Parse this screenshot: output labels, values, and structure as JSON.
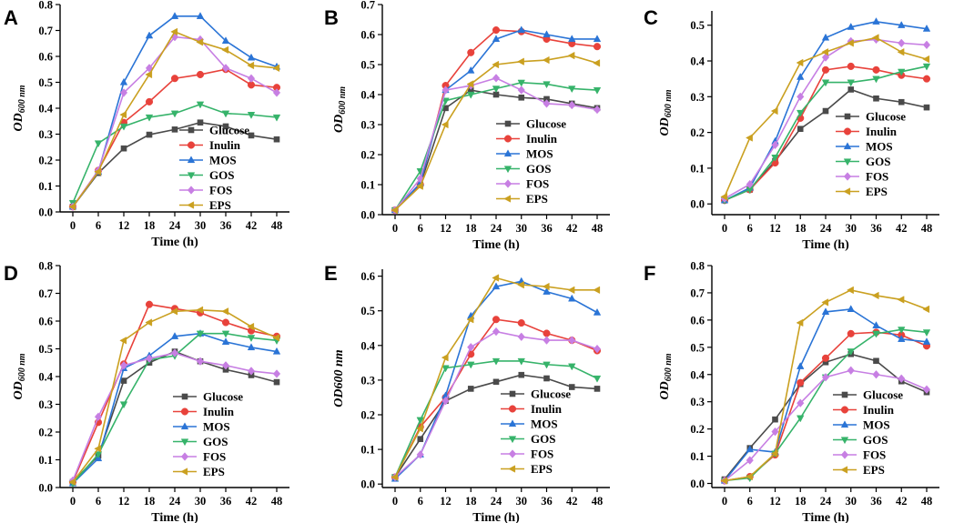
{
  "colors": {
    "Glucose": "#4a4a4a",
    "Inulin": "#e8423b",
    "MOS": "#2a74d6",
    "GOS": "#36b36a",
    "FOS": "#c77fe3",
    "EPS": "#caa020"
  },
  "markers": {
    "Glucose": "square",
    "Inulin": "circle",
    "MOS": "triangle-up",
    "GOS": "triangle-down",
    "FOS": "diamond",
    "EPS": "triangle-left"
  },
  "chart_data": [
    {
      "panel": "A",
      "type": "line",
      "xlabel": "Time (h)",
      "ylabel": "OD",
      "ylabel_sub": "600 nm",
      "categories": [
        "0",
        "6",
        "12",
        "18",
        "24",
        "30",
        "36",
        "42",
        "48"
      ],
      "yticks": [
        "0.0",
        "0.1",
        "0.2",
        "0.3",
        "0.4",
        "0.5",
        "0.6",
        "0.7",
        "0.8"
      ],
      "ylim": [
        0,
        0.8
      ],
      "series": [
        {
          "name": "Glucose",
          "values": [
            0.02,
            0.15,
            0.245,
            0.298,
            0.318,
            0.345,
            0.33,
            0.295,
            0.28
          ]
        },
        {
          "name": "Inulin",
          "values": [
            0.02,
            0.16,
            0.345,
            0.425,
            0.515,
            0.53,
            0.55,
            0.49,
            0.48
          ]
        },
        {
          "name": "MOS",
          "values": [
            0.02,
            0.155,
            0.5,
            0.68,
            0.755,
            0.755,
            0.66,
            0.595,
            0.56
          ]
        },
        {
          "name": "GOS",
          "values": [
            0.035,
            0.265,
            0.33,
            0.365,
            0.38,
            0.415,
            0.38,
            0.375,
            0.365
          ]
        },
        {
          "name": "FOS",
          "values": [
            0.02,
            0.16,
            0.46,
            0.555,
            0.675,
            0.665,
            0.555,
            0.515,
            0.46
          ]
        },
        {
          "name": "EPS",
          "values": [
            0.02,
            0.155,
            0.375,
            0.53,
            0.695,
            0.655,
            0.625,
            0.565,
            0.555
          ]
        }
      ]
    },
    {
      "panel": "B",
      "type": "line",
      "xlabel": "Time (h)",
      "ylabel": "OD",
      "ylabel_sub": "600 nm",
      "categories": [
        "0",
        "6",
        "12",
        "18",
        "24",
        "30",
        "36",
        "42",
        "48"
      ],
      "yticks": [
        "0.0",
        "0.1",
        "0.2",
        "0.3",
        "0.4",
        "0.5",
        "0.6",
        "0.7"
      ],
      "ylim": [
        0,
        0.7
      ],
      "series": [
        {
          "name": "Glucose",
          "values": [
            0.015,
            0.1,
            0.355,
            0.415,
            0.4,
            0.39,
            0.385,
            0.37,
            0.355
          ]
        },
        {
          "name": "Inulin",
          "values": [
            0.015,
            0.1,
            0.43,
            0.54,
            0.615,
            0.61,
            0.585,
            0.57,
            0.56
          ]
        },
        {
          "name": "MOS",
          "values": [
            0.015,
            0.105,
            0.415,
            0.48,
            0.585,
            0.615,
            0.6,
            0.585,
            0.585
          ]
        },
        {
          "name": "GOS",
          "values": [
            0.015,
            0.145,
            0.38,
            0.4,
            0.42,
            0.44,
            0.435,
            0.42,
            0.415
          ]
        },
        {
          "name": "FOS",
          "values": [
            0.015,
            0.12,
            0.415,
            0.43,
            0.455,
            0.415,
            0.37,
            0.365,
            0.35
          ]
        },
        {
          "name": "EPS",
          "values": [
            0.015,
            0.095,
            0.3,
            0.435,
            0.5,
            0.51,
            0.515,
            0.53,
            0.505
          ]
        }
      ]
    },
    {
      "panel": "C",
      "type": "line",
      "xlabel": "Time (h)",
      "ylabel": "OD",
      "ylabel_sub": "600 nm",
      "categories": [
        "0",
        "6",
        "12",
        "18",
        "24",
        "30",
        "36",
        "42",
        "48"
      ],
      "yticks": [
        "0.0",
        "0.1",
        "0.2",
        "0.3",
        "0.4",
        "0.5"
      ],
      "ylim": [
        -0.03,
        0.54
      ],
      "series": [
        {
          "name": "Glucose",
          "values": [
            0.01,
            0.04,
            0.12,
            0.21,
            0.26,
            0.32,
            0.295,
            0.285,
            0.27
          ]
        },
        {
          "name": "Inulin",
          "values": [
            0.01,
            0.04,
            0.115,
            0.24,
            0.375,
            0.385,
            0.375,
            0.36,
            0.35
          ]
        },
        {
          "name": "MOS",
          "values": [
            0.01,
            0.045,
            0.175,
            0.355,
            0.465,
            0.495,
            0.51,
            0.5,
            0.49
          ]
        },
        {
          "name": "GOS",
          "values": [
            0.01,
            0.04,
            0.13,
            0.255,
            0.34,
            0.34,
            0.35,
            0.37,
            0.385
          ]
        },
        {
          "name": "FOS",
          "values": [
            0.015,
            0.055,
            0.165,
            0.3,
            0.41,
            0.455,
            0.46,
            0.45,
            0.445
          ]
        },
        {
          "name": "EPS",
          "values": [
            0.02,
            0.185,
            0.26,
            0.395,
            0.425,
            0.45,
            0.465,
            0.425,
            0.405
          ]
        }
      ]
    },
    {
      "panel": "D",
      "type": "line",
      "xlabel": "Time (h)",
      "ylabel": "OD",
      "ylabel_sub": "600 nm",
      "categories": [
        "0",
        "6",
        "12",
        "18",
        "24",
        "30",
        "36",
        "42",
        "48"
      ],
      "yticks": [
        "0.0",
        "0.1",
        "0.2",
        "0.3",
        "0.4",
        "0.5",
        "0.6",
        "0.7",
        "0.8"
      ],
      "ylim": [
        0,
        0.8
      ],
      "series": [
        {
          "name": "Glucose",
          "values": [
            0.02,
            0.115,
            0.385,
            0.45,
            0.49,
            0.455,
            0.425,
            0.405,
            0.38
          ]
        },
        {
          "name": "Inulin",
          "values": [
            0.02,
            0.235,
            0.445,
            0.66,
            0.645,
            0.63,
            0.595,
            0.565,
            0.545
          ]
        },
        {
          "name": "MOS",
          "values": [
            0.015,
            0.105,
            0.43,
            0.475,
            0.545,
            0.555,
            0.525,
            0.505,
            0.49
          ]
        },
        {
          "name": "GOS",
          "values": [
            0.015,
            0.12,
            0.3,
            0.46,
            0.475,
            0.555,
            0.555,
            0.54,
            0.53
          ]
        },
        {
          "name": "FOS",
          "values": [
            0.025,
            0.255,
            0.44,
            0.465,
            0.485,
            0.455,
            0.44,
            0.42,
            0.41
          ]
        },
        {
          "name": "EPS",
          "values": [
            0.02,
            0.14,
            0.53,
            0.595,
            0.635,
            0.64,
            0.635,
            0.58,
            0.54
          ]
        }
      ]
    },
    {
      "panel": "E",
      "type": "line",
      "xlabel": "Time (h)",
      "ylabel": "OD600 nm",
      "ylabel_sub": "",
      "categories": [
        "0",
        "6",
        "12",
        "18",
        "24",
        "30",
        "36",
        "42",
        "48"
      ],
      "yticks": [
        "0.0",
        "0.1",
        "0.2",
        "0.3",
        "0.4",
        "0.5",
        "0.6"
      ],
      "ylim": [
        -0.01,
        0.62
      ],
      "series": [
        {
          "name": "Glucose",
          "values": [
            0.02,
            0.13,
            0.24,
            0.275,
            0.295,
            0.315,
            0.305,
            0.28,
            0.275
          ]
        },
        {
          "name": "Inulin",
          "values": [
            0.02,
            0.165,
            0.25,
            0.375,
            0.475,
            0.465,
            0.435,
            0.415,
            0.385
          ]
        },
        {
          "name": "MOS",
          "values": [
            0.015,
            0.085,
            0.255,
            0.485,
            0.57,
            0.585,
            0.555,
            0.535,
            0.495
          ]
        },
        {
          "name": "GOS",
          "values": [
            0.02,
            0.185,
            0.335,
            0.345,
            0.355,
            0.355,
            0.345,
            0.34,
            0.305
          ]
        },
        {
          "name": "FOS",
          "values": [
            0.02,
            0.085,
            0.24,
            0.395,
            0.44,
            0.425,
            0.415,
            0.415,
            0.39
          ]
        },
        {
          "name": "EPS",
          "values": [
            0.02,
            0.16,
            0.365,
            0.475,
            0.595,
            0.575,
            0.57,
            0.56,
            0.56
          ]
        }
      ]
    },
    {
      "panel": "F",
      "type": "line",
      "xlabel": "Time (h)",
      "ylabel": "OD",
      "ylabel_sub": "600 nm",
      "categories": [
        "0",
        "6",
        "12",
        "18",
        "24",
        "30",
        "36",
        "42",
        "48"
      ],
      "yticks": [
        "0.0",
        "0.1",
        "0.2",
        "0.3",
        "0.4",
        "0.5",
        "0.6",
        "0.7",
        "0.8"
      ],
      "ylim": [
        -0.015,
        0.8
      ],
      "series": [
        {
          "name": "Glucose",
          "values": [
            0.015,
            0.13,
            0.235,
            0.365,
            0.445,
            0.475,
            0.45,
            0.375,
            0.335
          ]
        },
        {
          "name": "Inulin",
          "values": [
            0.01,
            0.025,
            0.105,
            0.37,
            0.46,
            0.55,
            0.555,
            0.545,
            0.505
          ]
        },
        {
          "name": "MOS",
          "values": [
            0.01,
            0.125,
            0.115,
            0.43,
            0.63,
            0.64,
            0.58,
            0.53,
            0.52
          ]
        },
        {
          "name": "GOS",
          "values": [
            0.01,
            0.02,
            0.11,
            0.24,
            0.39,
            0.485,
            0.55,
            0.565,
            0.555
          ]
        },
        {
          "name": "FOS",
          "values": [
            0.01,
            0.085,
            0.19,
            0.295,
            0.39,
            0.415,
            0.4,
            0.385,
            0.345
          ]
        },
        {
          "name": "EPS",
          "values": [
            0.01,
            0.025,
            0.11,
            0.59,
            0.665,
            0.71,
            0.69,
            0.675,
            0.64
          ]
        }
      ]
    }
  ]
}
